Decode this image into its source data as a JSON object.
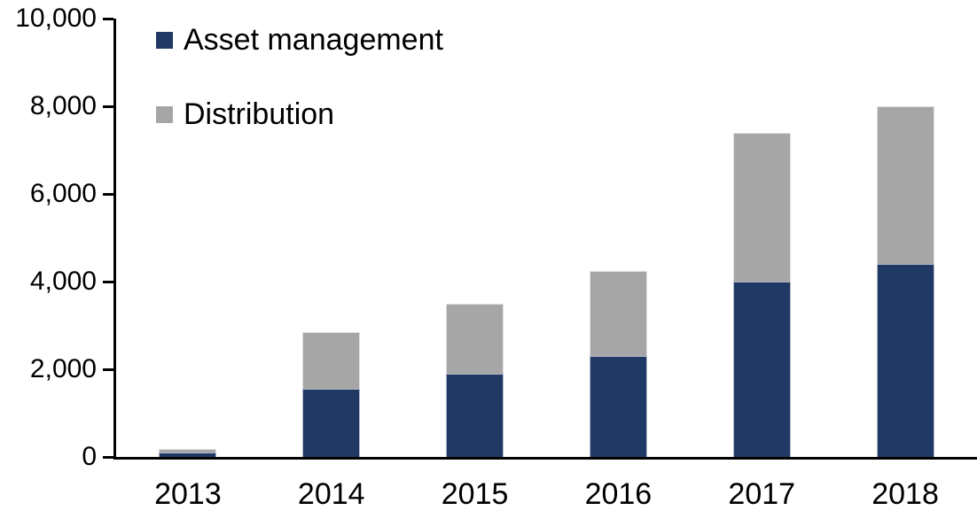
{
  "chart_data": {
    "type": "bar",
    "stacked": true,
    "categories": [
      "2013",
      "2014",
      "2015",
      "2016",
      "2017",
      "2018"
    ],
    "series": [
      {
        "name": "Asset management",
        "color": "#203864",
        "values": [
          100,
          1550,
          1900,
          2300,
          4000,
          4400
        ]
      },
      {
        "name": "Distribution",
        "color": "#A6A6A6",
        "values": [
          90,
          1300,
          1600,
          1950,
          3400,
          3600
        ]
      }
    ],
    "xlabel": "",
    "ylabel": "",
    "ylim": [
      0,
      10000
    ],
    "ytick_step": 2000,
    "ytick_labels": [
      "0",
      "2,000",
      "4,000",
      "6,000",
      "8,000",
      "10,000"
    ],
    "legend_position": "top-left",
    "grid": false,
    "axis_color": "#000000",
    "background": "#FFFFFF"
  }
}
